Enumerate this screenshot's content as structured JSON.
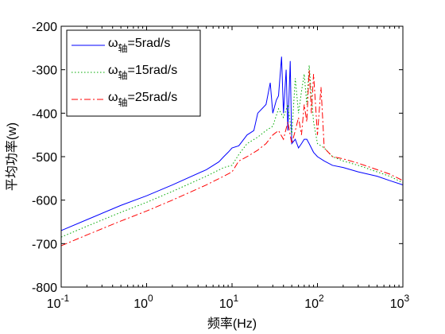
{
  "chart_data": {
    "type": "line",
    "xlabel": "频率(Hz)",
    "ylabel": "平均功率(w)",
    "xscale": "log",
    "xlim": [
      0.1,
      1000
    ],
    "ylim": [
      -800,
      -200
    ],
    "x_ticks": [
      {
        "value": 0.1,
        "base": "10",
        "exp": "-1"
      },
      {
        "value": 1,
        "base": "10",
        "exp": "0"
      },
      {
        "value": 10,
        "base": "10",
        "exp": "1"
      },
      {
        "value": 100,
        "base": "10",
        "exp": "2"
      },
      {
        "value": 1000,
        "base": "10",
        "exp": "3"
      }
    ],
    "y_ticks": [
      {
        "value": -200,
        "label": "-200"
      },
      {
        "value": -300,
        "label": "-300"
      },
      {
        "value": -400,
        "label": "-400"
      },
      {
        "value": -500,
        "label": "-500"
      },
      {
        "value": -600,
        "label": "-600"
      },
      {
        "value": -700,
        "label": "-700"
      },
      {
        "value": -800,
        "label": "-800"
      }
    ],
    "grid": false,
    "legend_position": "top-left",
    "series": [
      {
        "name": "ω轴=5rad/s",
        "symbol": "ω",
        "subscript": "轴",
        "suffix": "=5rad/s",
        "color": "#0000ff",
        "dash": "solid",
        "x": [
          0.1,
          0.2,
          0.5,
          1,
          2,
          5,
          7,
          8,
          9,
          10,
          12,
          15,
          18,
          20,
          25,
          28,
          30,
          33,
          35,
          38,
          40,
          43,
          45,
          48,
          50,
          55,
          60,
          65,
          70,
          75,
          80,
          90,
          100,
          120,
          150,
          200,
          300,
          500,
          700,
          1000
        ],
        "y": [
          -670,
          -645,
          -612,
          -590,
          -565,
          -530,
          -512,
          -500,
          -490,
          -480,
          -475,
          -450,
          -440,
          -400,
          -380,
          -330,
          -400,
          -370,
          -360,
          -270,
          -400,
          -300,
          -440,
          -280,
          -470,
          -460,
          -480,
          -470,
          -460,
          -460,
          -470,
          -490,
          -500,
          -510,
          -520,
          -525,
          -535,
          -545,
          -555,
          -565
        ]
      },
      {
        "name": "ω轴=15rad/s",
        "symbol": "ω",
        "subscript": "轴",
        "suffix": "=15rad/s",
        "color": "#00aa00",
        "dash": "dotted",
        "x": [
          0.1,
          0.2,
          0.5,
          1,
          2,
          5,
          8,
          10,
          12,
          15,
          20,
          25,
          30,
          35,
          40,
          45,
          50,
          55,
          60,
          65,
          70,
          75,
          80,
          90,
          100,
          120,
          150,
          200,
          300,
          500,
          700,
          1000
        ],
        "y": [
          -685,
          -660,
          -628,
          -605,
          -580,
          -545,
          -525,
          -520,
          -495,
          -470,
          -455,
          -440,
          -430,
          -390,
          -410,
          -380,
          -450,
          -320,
          -400,
          -350,
          -310,
          -380,
          -290,
          -420,
          -470,
          -480,
          -500,
          -510,
          -520,
          -535,
          -545,
          -560
        ]
      },
      {
        "name": "ω轴=25rad/s",
        "symbol": "ω",
        "subscript": "轴",
        "suffix": "=25rad/s",
        "color": "#ff0000",
        "dash": "dashdot",
        "x": [
          0.1,
          0.2,
          0.5,
          1,
          2,
          5,
          8,
          10,
          12,
          15,
          20,
          25,
          30,
          35,
          40,
          45,
          50,
          55,
          60,
          65,
          70,
          75,
          80,
          85,
          90,
          100,
          110,
          120,
          150,
          200,
          300,
          500,
          700,
          1000
        ],
        "y": [
          -705,
          -680,
          -648,
          -625,
          -600,
          -565,
          -545,
          -535,
          -510,
          -500,
          -485,
          -470,
          -450,
          -440,
          -460,
          -420,
          -470,
          -440,
          -410,
          -450,
          -380,
          -420,
          -300,
          -400,
          -310,
          -450,
          -340,
          -480,
          -500,
          -505,
          -515,
          -530,
          -540,
          -555
        ]
      }
    ]
  }
}
